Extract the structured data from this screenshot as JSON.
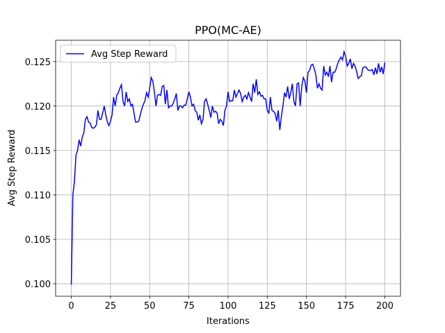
{
  "chart_data": {
    "type": "line",
    "title": "PPO(MC-AE)",
    "xlabel": "Iterations",
    "ylabel": "Avg Step Reward",
    "x": [
      0,
      1,
      2,
      3,
      4,
      5,
      6,
      7,
      8,
      9,
      10,
      11,
      12,
      13,
      14,
      15,
      16,
      17,
      18,
      19,
      20,
      21,
      22,
      23,
      24,
      25,
      26,
      27,
      28,
      29,
      30,
      31,
      32,
      33,
      34,
      35,
      36,
      37,
      38,
      39,
      40,
      41,
      42,
      43,
      44,
      45,
      46,
      47,
      48,
      49,
      50,
      51,
      52,
      53,
      54,
      55,
      56,
      57,
      58,
      59,
      60,
      61,
      62,
      63,
      64,
      65,
      66,
      67,
      68,
      69,
      70,
      71,
      72,
      73,
      74,
      75,
      76,
      77,
      78,
      79,
      80,
      81,
      82,
      83,
      84,
      85,
      86,
      87,
      88,
      89,
      90,
      91,
      92,
      93,
      94,
      95,
      96,
      97,
      98,
      99,
      100,
      101,
      102,
      103,
      104,
      105,
      106,
      107,
      108,
      109,
      110,
      111,
      112,
      113,
      114,
      115,
      116,
      117,
      118,
      119,
      120,
      121,
      122,
      123,
      124,
      125,
      126,
      127,
      128,
      129,
      130,
      131,
      132,
      133,
      134,
      135,
      136,
      137,
      138,
      139,
      140,
      141,
      142,
      143,
      144,
      145,
      146,
      147,
      148,
      149,
      150,
      151,
      152,
      153,
      154,
      155,
      156,
      157,
      158,
      159,
      160,
      161,
      162,
      163,
      164,
      165,
      166,
      167,
      168,
      169,
      170,
      171,
      172,
      173,
      174,
      175,
      176,
      177,
      178,
      179,
      180,
      181,
      182,
      183,
      184,
      185,
      186,
      187,
      188,
      189,
      190,
      191,
      192,
      193,
      194,
      195,
      196,
      197,
      198,
      199,
      200
    ],
    "series": [
      {
        "name": "Avg Step Reward",
        "color": "#0000ff",
        "values": [
          0.0999,
          0.11,
          0.1115,
          0.1145,
          0.115,
          0.1162,
          0.1155,
          0.1165,
          0.117,
          0.1185,
          0.1188,
          0.1182,
          0.1181,
          0.1176,
          0.1175,
          0.1176,
          0.1179,
          0.1195,
          0.1185,
          0.1185,
          0.1192,
          0.12,
          0.119,
          0.1182,
          0.1178,
          0.1183,
          0.119,
          0.121,
          0.12,
          0.1212,
          0.1215,
          0.122,
          0.1224,
          0.1205,
          0.12,
          0.1216,
          0.1205,
          0.1208,
          0.12,
          0.1202,
          0.1192,
          0.1182,
          0.1182,
          0.1183,
          0.119,
          0.1197,
          0.1202,
          0.1206,
          0.1215,
          0.121,
          0.122,
          0.1232,
          0.1228,
          0.1216,
          0.12,
          0.1212,
          0.1213,
          0.1212,
          0.1222,
          0.1223,
          0.1202,
          0.1218,
          0.1198,
          0.12,
          0.12,
          0.1203,
          0.1208,
          0.1214,
          0.1195,
          0.12,
          0.12,
          0.1198,
          0.1201,
          0.1201,
          0.1208,
          0.1216,
          0.121,
          0.12,
          0.1202,
          0.1195,
          0.1193,
          0.1184,
          0.119,
          0.118,
          0.1185,
          0.1205,
          0.1208,
          0.1202,
          0.1195,
          0.1187,
          0.12,
          0.1193,
          0.1194,
          0.1192,
          0.118,
          0.1185,
          0.1183,
          0.1178,
          0.1195,
          0.12,
          0.1216,
          0.1205,
          0.1206,
          0.1206,
          0.1218,
          0.121,
          0.1214,
          0.1218,
          0.1214,
          0.1205,
          0.121,
          0.1212,
          0.1208,
          0.1215,
          0.121,
          0.1205,
          0.1225,
          0.1215,
          0.123,
          0.1213,
          0.1216,
          0.1211,
          0.1212,
          0.1208,
          0.1208,
          0.1195,
          0.1192,
          0.121,
          0.1195,
          0.1194,
          0.1192,
          0.1183,
          0.1195,
          0.1173,
          0.1188,
          0.12,
          0.1215,
          0.121,
          0.1222,
          0.1208,
          0.1215,
          0.1225,
          0.1205,
          0.12,
          0.1225,
          0.1226,
          0.12,
          0.1222,
          0.1232,
          0.1228,
          0.1215,
          0.1238,
          0.124,
          0.1246,
          0.1247,
          0.1242,
          0.1235,
          0.122,
          0.1225,
          0.122,
          0.1218,
          0.1245,
          0.1235,
          0.1238,
          0.1233,
          0.1245,
          0.1227,
          0.1238,
          0.1238,
          0.1242,
          0.1248,
          0.1252,
          0.1255,
          0.1252,
          0.1261,
          0.1256,
          0.1245,
          0.1248,
          0.1253,
          0.1242,
          0.1248,
          0.1245,
          0.1239,
          0.1231,
          0.1233,
          0.1234,
          0.1243,
          0.1244,
          0.1244,
          0.1241,
          0.124,
          0.124,
          0.1241,
          0.1235,
          0.1243,
          0.1236,
          0.1248,
          0.1238,
          0.1244,
          0.1236,
          0.1249
        ]
      }
    ],
    "xlim": [
      -10,
      210
    ],
    "xticks": [
      0,
      25,
      50,
      75,
      100,
      125,
      150,
      175,
      200
    ],
    "ylim": [
      0.0986,
      0.1274
    ],
    "yticks": [
      {
        "value": 0.1,
        "label": "0.100"
      },
      {
        "value": 0.105,
        "label": "0.105"
      },
      {
        "value": 0.11,
        "label": "0.110"
      },
      {
        "value": 0.115,
        "label": "0.115"
      },
      {
        "value": 0.12,
        "label": "0.120"
      },
      {
        "value": 0.125,
        "label": "0.125"
      }
    ],
    "grid": true,
    "legend": "upper left"
  }
}
